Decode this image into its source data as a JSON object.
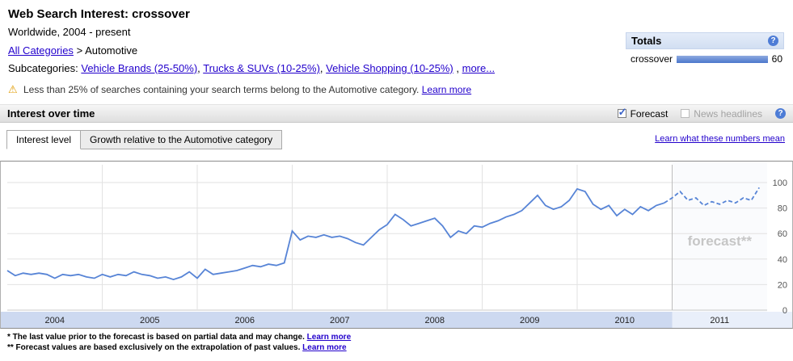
{
  "icons": {
    "warning": "⚠",
    "help": "?",
    "check": "✓"
  },
  "header": {
    "title": "Web Search Interest: crossover",
    "subtitle": "Worldwide, 2004 - present",
    "breadcrumb": {
      "link": "All Categories",
      "separator": ">",
      "current": "Automotive"
    },
    "subcategories_label": "Subcategories:",
    "subcategories": [
      "Vehicle Brands (25-50%)",
      "Trucks & SUVs (10-25%)",
      "Vehicle Shopping (10-25%)"
    ],
    "list_separator": ",",
    "more_link": "more...",
    "warning": {
      "text": "Less than 25% of searches containing your search terms belong to the Automotive category.",
      "link": "Learn more"
    }
  },
  "totals": {
    "title": "Totals",
    "rows": [
      {
        "label": "crossover",
        "value": 60
      }
    ]
  },
  "section": {
    "title": "Interest over time",
    "forecast_label": "Forecast",
    "news_label": "News headlines"
  },
  "tabs": [
    {
      "label": "Interest level",
      "active": true
    },
    {
      "label": "Growth relative to the Automotive category",
      "active": false
    }
  ],
  "learn_link": "Learn what these numbers mean",
  "chart_data": {
    "type": "line",
    "title": "Interest over time",
    "xlabel": "",
    "ylabel": "",
    "ylim": [
      0,
      100
    ],
    "yticks": [
      0,
      20,
      40,
      60,
      80,
      100
    ],
    "grid": true,
    "legend_position": "none",
    "watermark": "forecast**",
    "x_axis": {
      "years": [
        "2004",
        "2005",
        "2006",
        "2007",
        "2008",
        "2009",
        "2010",
        "2011"
      ],
      "start": "2004-01",
      "interval": "month"
    },
    "forecast_start_index": 84,
    "colors": {
      "line": "#5784d6",
      "band_history": "#cdd9f0",
      "band_forecast": "#e9effa",
      "forecast_bg": "#fafbfd",
      "grid": "#e2e2e2"
    },
    "series": [
      {
        "name": "crossover",
        "style": "solid",
        "values": [
          31,
          27,
          29,
          28,
          29,
          28,
          25,
          28,
          27,
          28,
          26,
          25,
          28,
          26,
          28,
          27,
          30,
          28,
          27,
          25,
          26,
          24,
          26,
          30,
          25,
          32,
          28,
          29,
          30,
          31,
          33,
          35,
          34,
          36,
          35,
          37,
          62,
          55,
          58,
          57,
          59,
          57,
          58,
          56,
          53,
          51,
          57,
          63,
          67,
          75,
          71,
          66,
          68,
          70,
          72,
          66,
          57,
          62,
          60,
          66,
          65,
          68,
          70,
          73,
          75,
          78,
          84,
          90,
          82,
          79,
          81,
          86,
          95,
          93,
          83,
          79,
          82,
          74,
          79,
          75,
          81,
          78,
          82,
          84
        ]
      },
      {
        "name": "crossover forecast",
        "style": "dashed",
        "values": [
          88,
          93,
          86,
          88,
          82,
          85,
          83,
          86,
          84,
          88,
          86,
          96
        ]
      }
    ]
  },
  "footnotes": [
    {
      "text": "* The last value prior to the forecast is based on partial data and may change.",
      "link": "Learn more"
    },
    {
      "text": "** Forecast values are based exclusively on the extrapolation of past values.",
      "link": "Learn more"
    }
  ]
}
